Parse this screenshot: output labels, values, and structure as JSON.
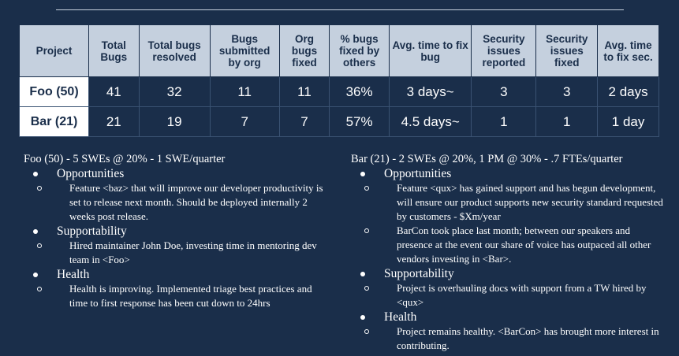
{
  "table": {
    "headers": [
      "Project",
      "Total Bugs",
      "Total bugs resolved",
      "Bugs submitted by org",
      "Org bugs fixed",
      "% bugs fixed by others",
      "Avg. time to fix bug",
      "Security issues reported",
      "Security issues fixed",
      "Avg. time to fix sec."
    ],
    "rows": [
      [
        "Foo (50)",
        "41",
        "32",
        "11",
        "11",
        "36%",
        "3 days~",
        "3",
        "3",
        "2 days"
      ],
      [
        "Bar (21)",
        "21",
        "19",
        "7",
        "7",
        "57%",
        "4.5 days~",
        "1",
        "1",
        "1 day"
      ]
    ]
  },
  "foo": {
    "heading": "Foo (50) - 5 SWEs @ 20% - 1 SWE/quarter",
    "sections": [
      {
        "title": "Opportunities",
        "items": [
          "Feature <baz> that will improve our developer productivity is set to release next month. Should be deployed internally 2 weeks post release."
        ]
      },
      {
        "title": "Supportability",
        "items": [
          "Hired maintainer John Doe, investing time in mentoring dev team in <Foo>"
        ]
      },
      {
        "title": "Health",
        "items": [
          "Health is improving. Implemented triage best practices and time to first response has been cut down to 24hrs"
        ]
      }
    ]
  },
  "bar": {
    "heading": "Bar (21) - 2 SWEs @ 20%, 1 PM @ 30% -  .7 FTEs/quarter",
    "sections": [
      {
        "title": "Opportunities",
        "items": [
          "Feature <qux> has gained support and has begun development, will ensure our product supports new security standard requested by customers - $Xm/year",
          "BarCon took place last month; between our speakers and presence at the event our share of voice has outpaced all other vendors investing in <Bar>."
        ]
      },
      {
        "title": "Supportability",
        "items": [
          "Project is overhauling docs with support from a TW hired by <qux>"
        ]
      },
      {
        "title": "Health",
        "items": [
          "Project remains healthy. <BarCon> has brought more interest in contributing."
        ]
      }
    ]
  }
}
